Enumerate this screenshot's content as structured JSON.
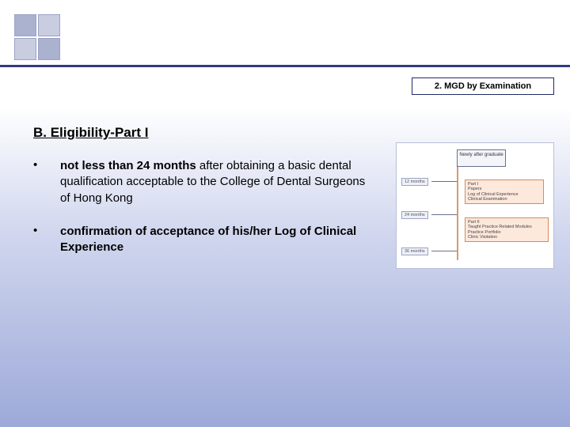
{
  "header": {
    "tab_label": "2. MGD by Examination"
  },
  "section": {
    "title": "B. Eligibility-Part I"
  },
  "bullets": [
    {
      "bold": "not less than 24 months",
      "rest": " after obtaining a basic dental qualification acceptable to the College of Dental Surgeons of Hong Kong"
    },
    {
      "bold": "confirmation of acceptance of his/her Log of Clinical Experience",
      "rest": ""
    }
  ],
  "diagram": {
    "top_label": "Newly after graduate",
    "left_labels": [
      "12 months",
      "24 months",
      "36 months"
    ],
    "part1": {
      "title": "Part I",
      "lines": [
        "Papers",
        "Log of Clinical Experience",
        "Clinical Examination"
      ]
    },
    "part2": {
      "title": "Part II",
      "lines": [
        "Taught Practice Related Modules",
        "Practice Portfolio",
        "Clinic Visitation"
      ]
    },
    "colors": {
      "box_fill": "#fde8dc",
      "box_border": "#d68b5a",
      "vline": "#d99a6b",
      "label_fill": "#eef0f9",
      "label_border": "#9aa3c4",
      "page_bg": "#ffffff"
    }
  },
  "style": {
    "hr_color": "#2f3b7f",
    "gradient_top": "#ffffff",
    "gradient_bottom": "#9da9d9",
    "title_fontsize": 17,
    "body_fontsize": 15,
    "tab_fontsize": 11
  }
}
